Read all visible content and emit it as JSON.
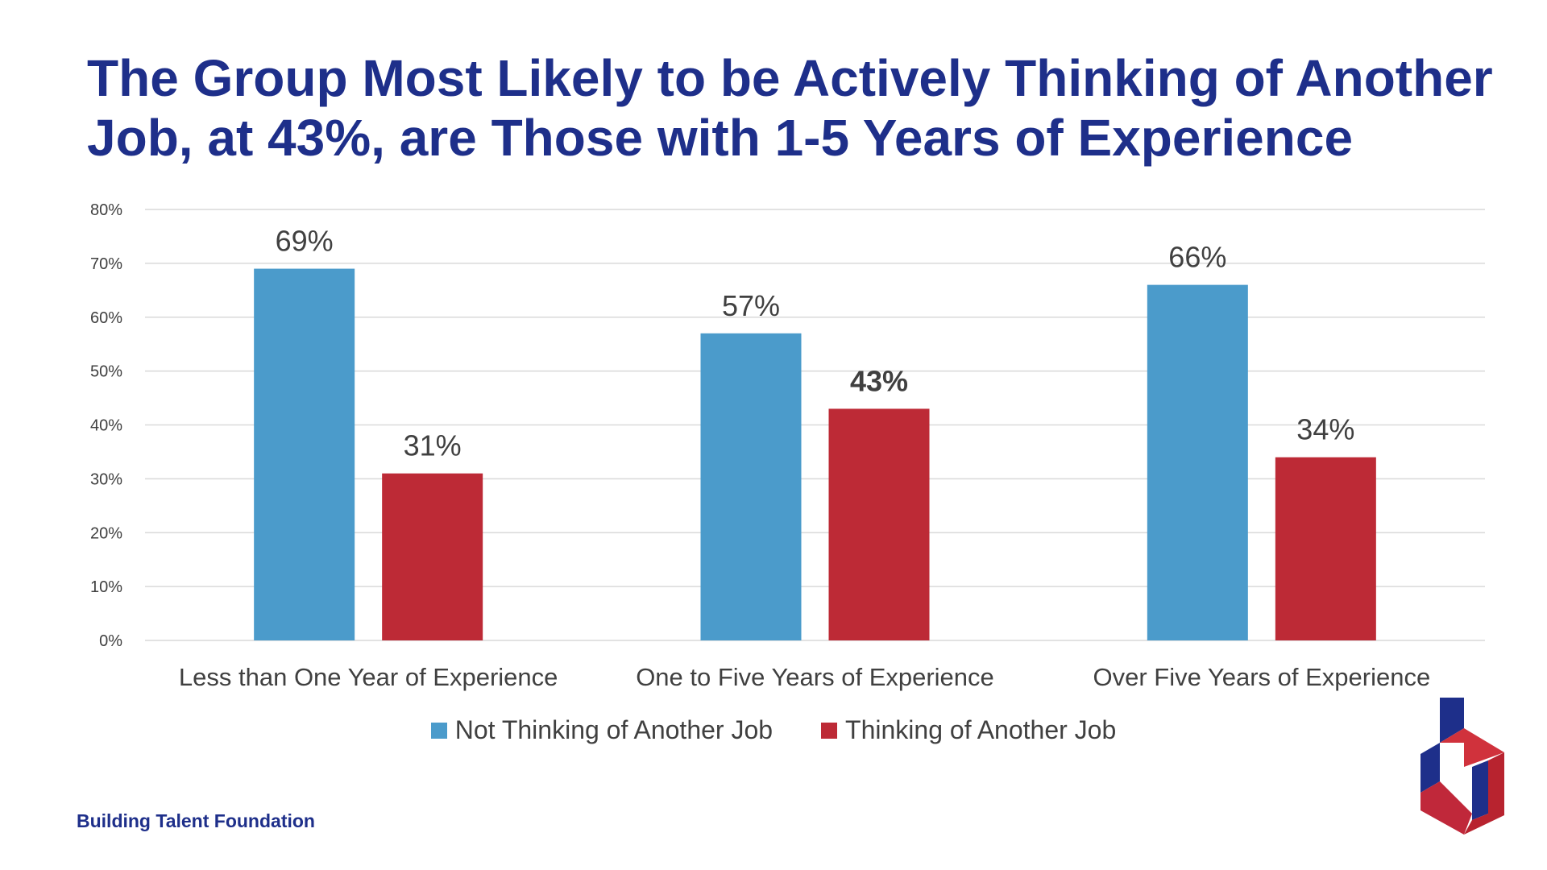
{
  "title_lines": [
    "The Group Most Likely to be Actively Thinking of Another",
    "Job, at 43%, are Those with 1-5 Years of Experience"
  ],
  "footer": {
    "brand": "Building Talent Foundation"
  },
  "logo": {
    "icon": "building-talent-foundation-logo"
  },
  "colors": {
    "title": "#1e2f8a",
    "not_thinking": "#4b9bcb",
    "thinking": "#bd2a36",
    "gridline": "#d9d9d9",
    "text": "#404040"
  },
  "chart_data": {
    "type": "bar",
    "categories": [
      "Less than One Year of Experience",
      "One to Five Years of Experience",
      "Over Five Years of Experience"
    ],
    "series": [
      {
        "name": "Not Thinking of Another Job",
        "values": [
          69,
          57,
          66
        ],
        "labels": [
          "69%",
          "57%",
          "66%"
        ],
        "color": "#4b9bcb"
      },
      {
        "name": "Thinking of Another Job",
        "values": [
          31,
          43,
          34
        ],
        "labels": [
          "31%",
          "43%",
          "34%"
        ],
        "color": "#bd2a36",
        "emphasized_label_index": 1
      }
    ],
    "y_ticks": [
      "0%",
      "10%",
      "20%",
      "30%",
      "40%",
      "50%",
      "60%",
      "70%",
      "80%"
    ],
    "ylim": [
      0,
      80
    ],
    "grid": true,
    "legend_position": "bottom"
  }
}
